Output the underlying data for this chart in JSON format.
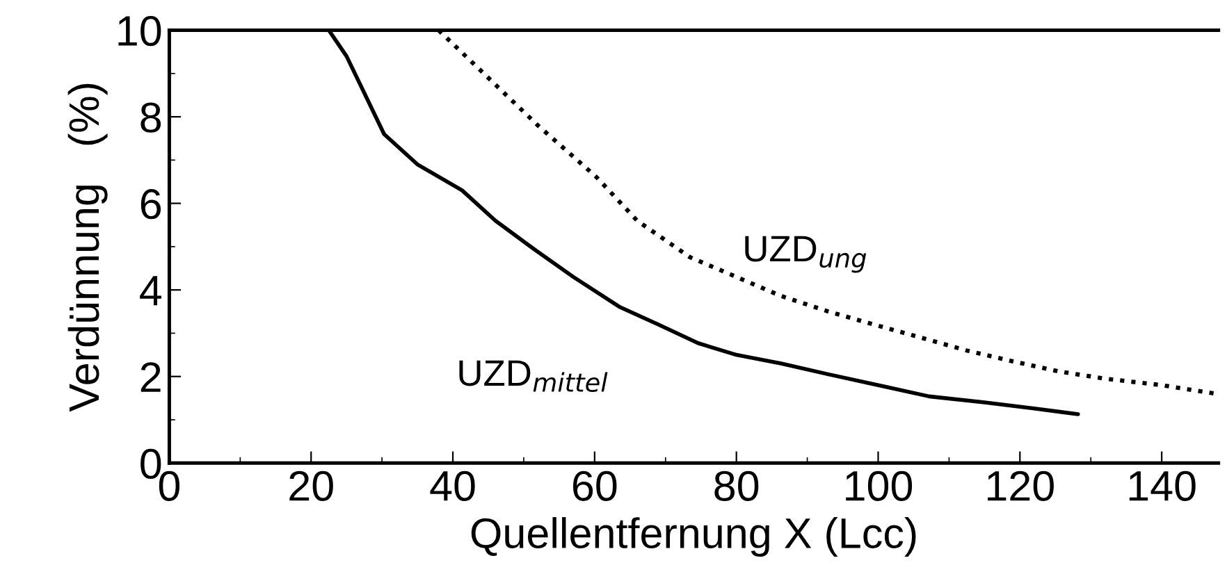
{
  "chart_data": {
    "type": "line",
    "xlabel": "Quellentfernung X (Lcc)",
    "ylabel": "Verdünnung   (%)",
    "xlim": [
      0,
      148
    ],
    "xticks": [
      0,
      20,
      40,
      60,
      80,
      100,
      120,
      140
    ],
    "ylim": [
      0,
      10
    ],
    "yticks": [
      0,
      2,
      4,
      6,
      8,
      10
    ],
    "grid": false,
    "legend": false,
    "marker": "none",
    "series": [
      {
        "name": "UZD$_{mittel}$",
        "color": "#000000",
        "line_style": "solid",
        "x": [
          22.5,
          25,
          30.3,
          35,
          41.3,
          46,
          51.8,
          57,
          63.6,
          69,
          74.6,
          80,
          86.3,
          93,
          100.8,
          107.2,
          115,
          122,
          128.2
        ],
        "values": [
          10,
          9.4,
          7.6,
          6.9,
          6.3,
          5.6,
          4.9,
          4.3,
          3.6,
          3.2,
          2.77,
          2.5,
          2.3,
          2.05,
          1.77,
          1.54,
          1.4,
          1.26,
          1.13
        ]
      },
      {
        "name": "UZD$_{ung}$",
        "color": "#000000",
        "line_style": "dotted",
        "x": [
          38,
          45,
          52,
          60.3,
          66,
          73.4,
          80,
          86.3,
          93,
          99.4,
          106,
          112.5,
          119,
          125.4,
          132,
          140,
          147.7
        ],
        "values": [
          10,
          8.9,
          7.8,
          6.6,
          5.6,
          4.76,
          4.3,
          3.86,
          3.5,
          3.2,
          2.9,
          2.6,
          2.35,
          2.12,
          1.95,
          1.8,
          1.6
        ]
      }
    ]
  }
}
